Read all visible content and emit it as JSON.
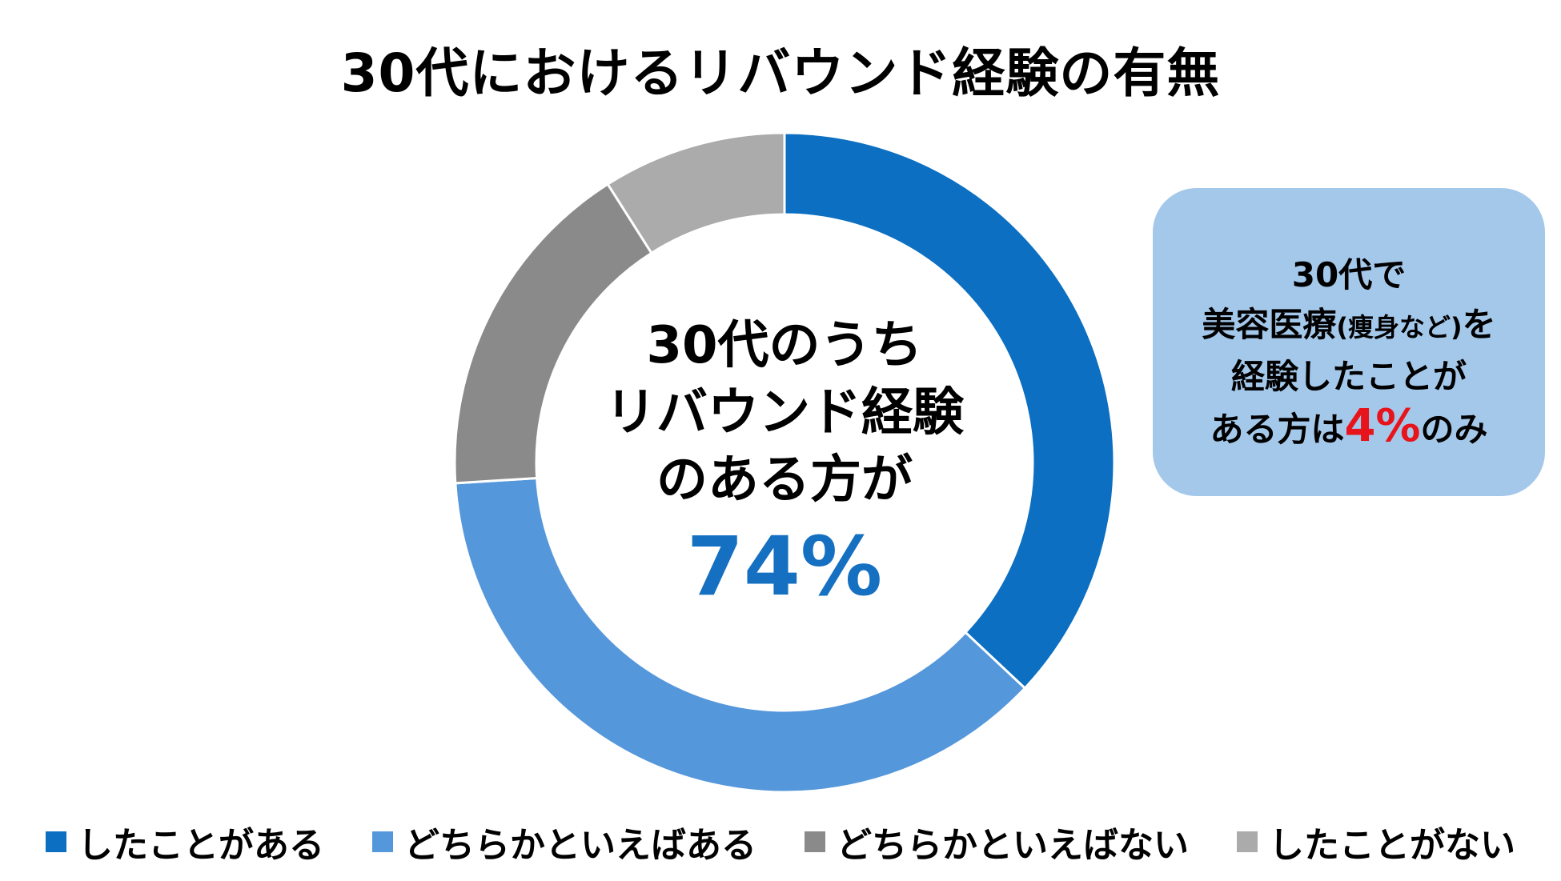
{
  "chart_data": {
    "type": "pie",
    "title": "30代におけるリバウンド経験の有無",
    "categories": [
      "したことがある",
      "どちらかといえばある",
      "どちらかといえばない",
      "したことがない"
    ],
    "values": [
      37,
      37,
      17,
      9
    ],
    "colors": [
      "#0c6fc1",
      "#5597db",
      "#8a8a8a",
      "#ababab"
    ],
    "legend": "bottom",
    "center_text": [
      "30代のうち",
      "リバウンド経験",
      "のある方が"
    ],
    "center_value": "74%",
    "callout": {
      "line1": "30代で",
      "line2a": "美容医療",
      "line2b": "(痩身など)",
      "line2c": "を",
      "line3": "経験したことが",
      "line4a": "ある方は",
      "line4b": "4%",
      "line4c": "のみ"
    }
  }
}
